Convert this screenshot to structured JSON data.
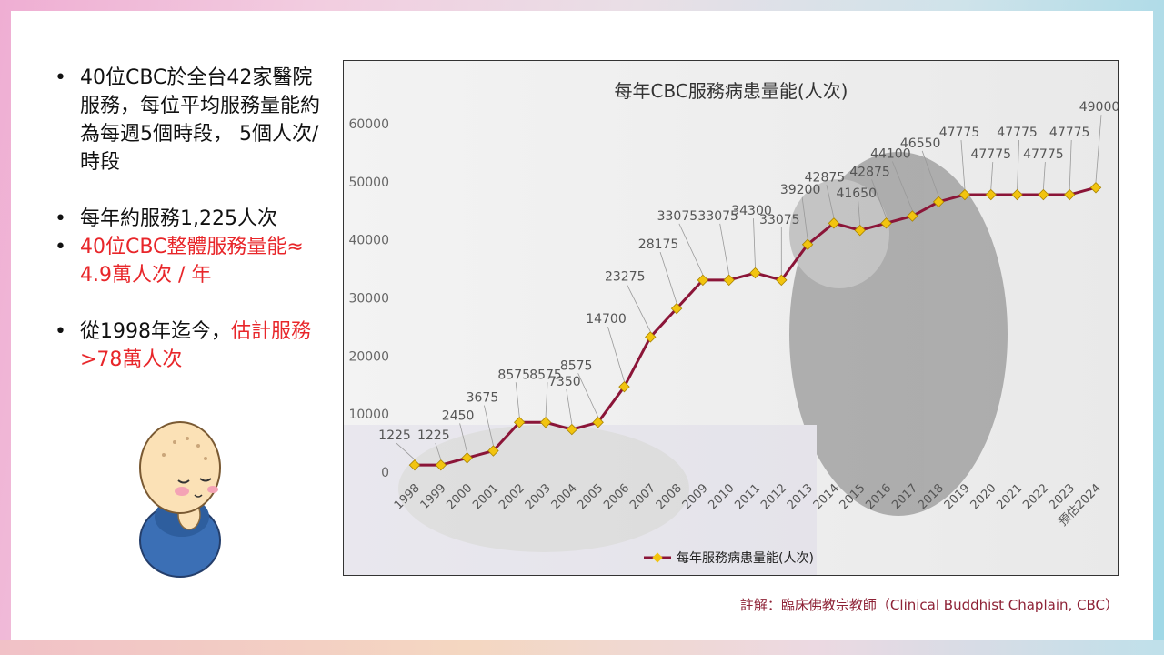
{
  "bullets": {
    "b1": "40位CBC於全台42家醫院服務，每位平均服務量能約為每週5個時段，  5個人次/時段",
    "b2": "每年約服務1,225人次",
    "b3": "40位CBC整體服務量能≈ 4.9萬人次 / 年",
    "b4_prefix": "從1998年迄今，",
    "b4_red": "估計服務 >78萬人次"
  },
  "footnote": "註解：臨床佛教宗教師（Clinical Buddhist Chaplain, CBC）",
  "colors": {
    "line": "#8b1538",
    "marker": "#f2c40f",
    "red": "#e8262a"
  },
  "chart_data": {
    "type": "line",
    "title": "每年CBC服務病患量能(人次)",
    "categories": [
      "1998",
      "1999",
      "2000",
      "2001",
      "2002",
      "2003",
      "2004",
      "2005",
      "2006",
      "2007",
      "2008",
      "2009",
      "2010",
      "2011",
      "2012",
      "2013",
      "2014",
      "2015",
      "2016",
      "2017",
      "2018",
      "2019",
      "2020",
      "2021",
      "2022",
      "2023",
      "預估2024"
    ],
    "series": [
      {
        "name": "每年服務病患量能(人次)",
        "values": [
          1225,
          1225,
          2450,
          3675,
          8575,
          8575,
          7350,
          8575,
          14700,
          23275,
          28175,
          33075,
          33075,
          34300,
          33075,
          39200,
          42875,
          41650,
          42875,
          44100,
          46550,
          47775,
          47775,
          47775,
          47775,
          47775,
          49000
        ]
      }
    ],
    "ylim": [
      0,
      60000
    ],
    "yticks": [
      0,
      10000,
      20000,
      30000,
      40000,
      50000,
      60000
    ],
    "legend": "bottom",
    "grid": false
  }
}
